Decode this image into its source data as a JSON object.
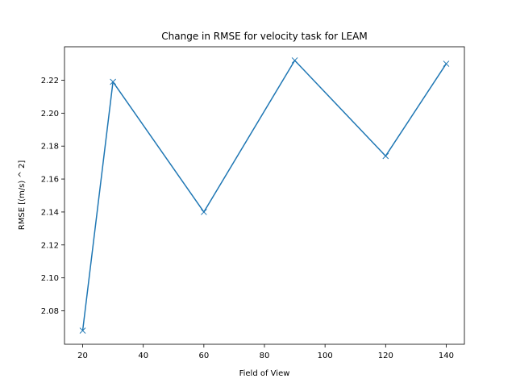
{
  "chart_data": {
    "type": "line",
    "title": "Change in RMSE for velocity task for LEAM",
    "xlabel": "Field of View",
    "ylabel": "RMSE [(m/s) ^ 2]",
    "x": [
      20,
      30,
      60,
      90,
      120,
      140
    ],
    "series": [
      {
        "values": [
          2.068,
          2.219,
          2.14,
          2.232,
          2.174,
          2.23
        ],
        "marker": "x"
      }
    ],
    "xlim": [
      14,
      146
    ],
    "ylim": [
      2.0597,
      2.2403
    ],
    "xticks": [
      20,
      40,
      60,
      80,
      100,
      120,
      140
    ],
    "yticks": [
      2.08,
      2.1,
      2.12,
      2.14,
      2.16,
      2.18,
      2.2,
      2.22
    ],
    "ytick_labels": [
      "2.08",
      "2.10",
      "2.12",
      "2.14",
      "2.16",
      "2.18",
      "2.20",
      "2.22"
    ],
    "grid": false,
    "line_color": "#1f77b4"
  }
}
